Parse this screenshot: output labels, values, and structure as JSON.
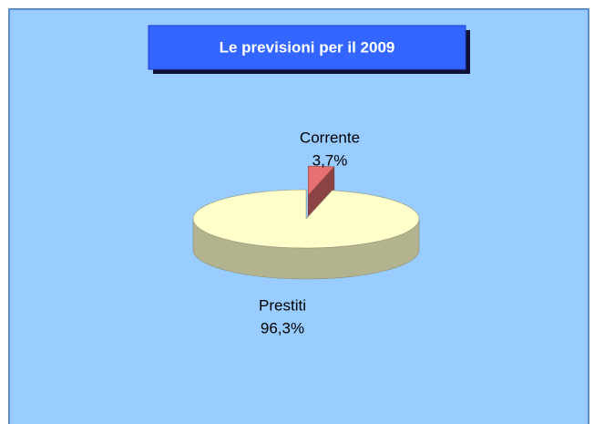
{
  "chart_data": {
    "type": "pie",
    "title": "Le previsioni per il 2009",
    "categories": [
      "Corrente",
      "Prestiti"
    ],
    "values": [
      3.7,
      96.3
    ],
    "value_labels": [
      "3,7%",
      "96,3%"
    ],
    "colors": [
      "#e87070",
      "#ffffcc"
    ]
  }
}
